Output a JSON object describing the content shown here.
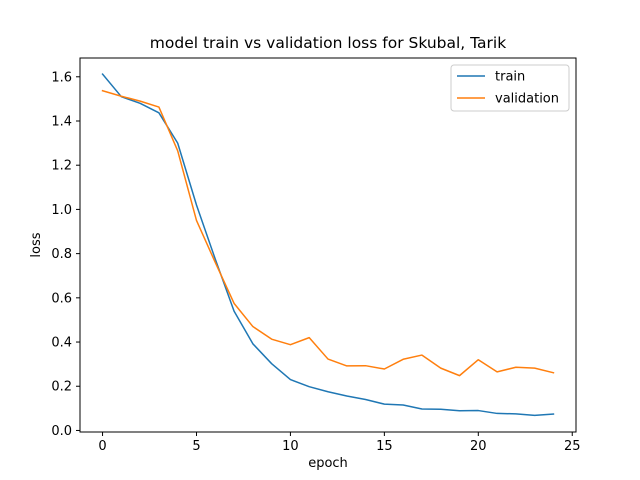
{
  "chart_data": {
    "type": "line",
    "title": "model train vs validation loss for Skubal, Tarik",
    "xlabel": "epoch",
    "ylabel": "loss",
    "xlim": [
      -1.2,
      25.2
    ],
    "ylim": [
      -0.007,
      1.685
    ],
    "xticks": [
      0,
      5,
      10,
      15,
      20,
      25
    ],
    "yticks": [
      0.0,
      0.2,
      0.4,
      0.6,
      0.8,
      1.0,
      1.2,
      1.4,
      1.6
    ],
    "grid": false,
    "legend_position": "top-right",
    "x": [
      0,
      1,
      2,
      3,
      4,
      5,
      6,
      7,
      8,
      9,
      10,
      11,
      12,
      13,
      14,
      15,
      16,
      17,
      18,
      19,
      20,
      21,
      22,
      23,
      24
    ],
    "series": [
      {
        "name": "train",
        "color": "#1f77b4",
        "values": [
          1.612,
          1.51,
          1.48,
          1.437,
          1.3,
          1.02,
          0.775,
          0.54,
          0.392,
          0.302,
          0.23,
          0.198,
          0.175,
          0.156,
          0.14,
          0.119,
          0.115,
          0.097,
          0.096,
          0.089,
          0.09,
          0.077,
          0.075,
          0.068,
          0.074
        ]
      },
      {
        "name": "validation",
        "color": "#ff7f0e",
        "values": [
          1.537,
          1.512,
          1.49,
          1.463,
          1.265,
          0.95,
          0.76,
          0.575,
          0.47,
          0.413,
          0.388,
          0.42,
          0.323,
          0.292,
          0.293,
          0.278,
          0.322,
          0.341,
          0.282,
          0.248,
          0.32,
          0.265,
          0.286,
          0.282,
          0.261
        ]
      }
    ]
  }
}
